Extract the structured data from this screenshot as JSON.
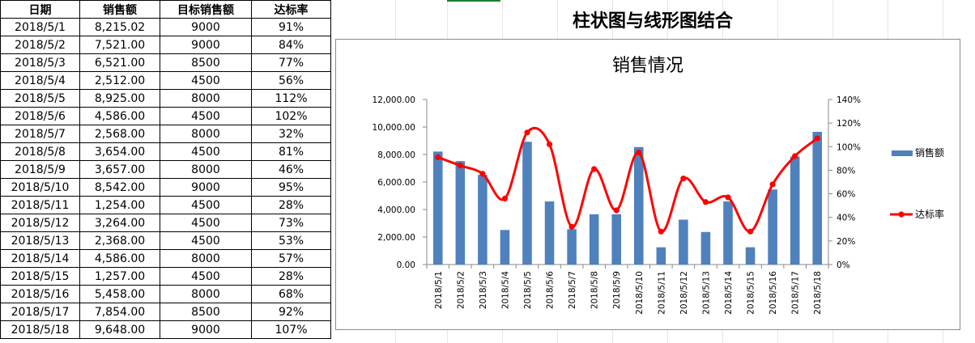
{
  "table": {
    "headers": [
      "日期",
      "销售额",
      "目标销售额",
      "达标率"
    ],
    "rows": [
      [
        "2018/5/1",
        "8,215.02",
        "9000",
        "91%"
      ],
      [
        "2018/5/2",
        "7,521.00",
        "9000",
        "84%"
      ],
      [
        "2018/5/3",
        "6,521.00",
        "8500",
        "77%"
      ],
      [
        "2018/5/4",
        "2,512.00",
        "4500",
        "56%"
      ],
      [
        "2018/5/5",
        "8,925.00",
        "8000",
        "112%"
      ],
      [
        "2018/5/6",
        "4,586.00",
        "4500",
        "102%"
      ],
      [
        "2018/5/7",
        "2,568.00",
        "8000",
        "32%"
      ],
      [
        "2018/5/8",
        "3,654.00",
        "4500",
        "81%"
      ],
      [
        "2018/5/9",
        "3,657.00",
        "8000",
        "46%"
      ],
      [
        "2018/5/10",
        "8,542.00",
        "9000",
        "95%"
      ],
      [
        "2018/5/11",
        "1,254.00",
        "4500",
        "28%"
      ],
      [
        "2018/5/12",
        "3,264.00",
        "4500",
        "73%"
      ],
      [
        "2018/5/13",
        "2,368.00",
        "4500",
        "53%"
      ],
      [
        "2018/5/14",
        "4,586.00",
        "8000",
        "57%"
      ],
      [
        "2018/5/15",
        "1,257.00",
        "4500",
        "28%"
      ],
      [
        "2018/5/16",
        "5,458.00",
        "8000",
        "68%"
      ],
      [
        "2018/5/17",
        "7,854.00",
        "8500",
        "92%"
      ],
      [
        "2018/5/18",
        "9,648.00",
        "9000",
        "107%"
      ]
    ]
  },
  "sheet_title": "柱状图与线形图结合",
  "chart_data": {
    "type": "bar",
    "title": "销售情况",
    "categories": [
      "2018/5/1",
      "2018/5/2",
      "2018/5/3",
      "2018/5/4",
      "2018/5/5",
      "2018/5/6",
      "2018/5/7",
      "2018/5/8",
      "2018/5/9",
      "2018/5/10",
      "2018/5/11",
      "2018/5/12",
      "2018/5/13",
      "2018/5/14",
      "2018/5/15",
      "2018/5/16",
      "2018/5/17",
      "2018/5/18"
    ],
    "series": [
      {
        "name": "销售额",
        "type": "bar",
        "axis": "left",
        "color": "#4f81bd",
        "values": [
          8215.02,
          7521,
          6521,
          2512,
          8925,
          4586,
          2568,
          3654,
          3657,
          8542,
          1254,
          3264,
          2368,
          4586,
          1257,
          5458,
          7854,
          9648
        ]
      },
      {
        "name": "达标率",
        "type": "line",
        "axis": "right",
        "smooth": true,
        "markers": true,
        "color": "#ff0000",
        "values": [
          0.91,
          0.84,
          0.77,
          0.56,
          1.12,
          1.02,
          0.32,
          0.81,
          0.46,
          0.95,
          0.28,
          0.73,
          0.53,
          0.57,
          0.28,
          0.68,
          0.92,
          1.07
        ]
      }
    ],
    "ylim": [
      0,
      12000
    ],
    "yticks": [
      "0.00",
      "2,000.00",
      "4,000.00",
      "6,000.00",
      "8,000.00",
      "10,000.00",
      "12,000.00"
    ],
    "y2lim": [
      0,
      1.4
    ],
    "y2ticks": [
      "0%",
      "20%",
      "40%",
      "60%",
      "80%",
      "100%",
      "120%",
      "140%"
    ],
    "legend_position": "right",
    "grid": false
  }
}
